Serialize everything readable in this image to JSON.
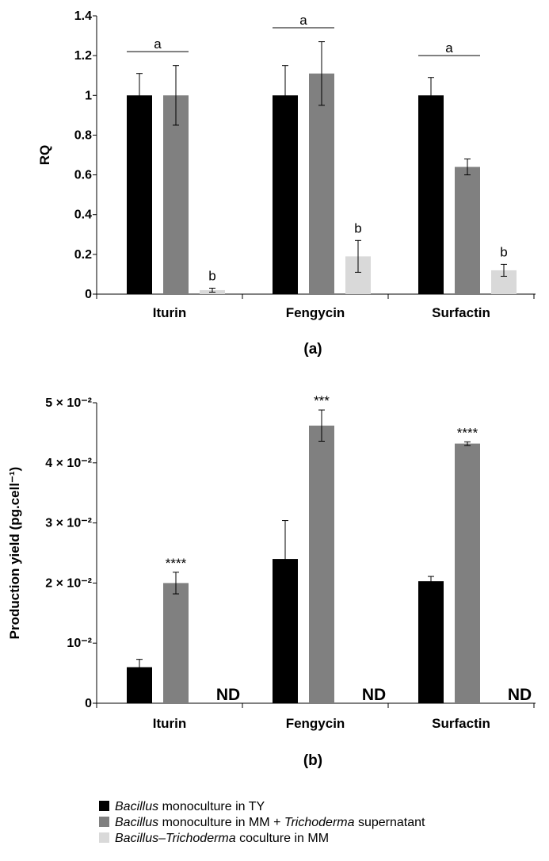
{
  "colors": {
    "series1": "#000000",
    "series2": "#808080",
    "series3": "#d9d9d9"
  },
  "legend": [
    {
      "italic": "Bacillus",
      "rest": " monoculture  in TY",
      "italic2": "",
      "rest2": ""
    },
    {
      "italic": "Bacillus",
      "rest": " monoculture  in MM + ",
      "italic2": "Trichoderma",
      "rest2": " supernatant"
    },
    {
      "italic": "Bacillus–Trichoderma",
      "rest": " coculture in MM",
      "italic2": "",
      "rest2": ""
    }
  ],
  "chart_data": [
    {
      "type": "bar",
      "panel_label": "(a)",
      "ylabel": "RQ",
      "ylim": [
        0,
        1.4
      ],
      "yticks": [
        0,
        0.2,
        0.4,
        0.6,
        0.8,
        1,
        1.2,
        1.4
      ],
      "ytick_labels": [
        "0",
        "0.2",
        "0.4",
        "0.6",
        "0.8",
        "1",
        "1.2",
        "1.4"
      ],
      "categories": [
        "Iturin",
        "Fengycin",
        "Surfactin"
      ],
      "series": [
        {
          "values": [
            1.0,
            1.0,
            1.0
          ],
          "errors": [
            0.11,
            0.15,
            0.09
          ]
        },
        {
          "values": [
            1.0,
            1.11,
            0.64
          ],
          "errors": [
            0.15,
            0.16,
            0.04
          ]
        },
        {
          "values": [
            0.02,
            0.19,
            0.12
          ],
          "errors": [
            0.01,
            0.08,
            0.03
          ]
        }
      ],
      "annotations": [
        {
          "category": 0,
          "group_label": "a",
          "third_label": "b",
          "line_y": 1.22
        },
        {
          "category": 1,
          "group_label": "a",
          "third_label": "b",
          "line_y": 1.34
        },
        {
          "category": 2,
          "group_label": "a",
          "third_label": "b",
          "line_y": 1.2
        }
      ]
    },
    {
      "type": "bar",
      "panel_label": "(b)",
      "ylabel": "Production yield (pg.cell⁻¹)",
      "ylim": [
        0,
        0.05
      ],
      "yticks": [
        0,
        0.01,
        0.02,
        0.03,
        0.04,
        0.05
      ],
      "ytick_labels": [
        "0",
        "10⁻²",
        "2 × 10⁻²",
        "3 × 10⁻²",
        "4 × 10⁻²",
        "5 × 10⁻²"
      ],
      "categories": [
        "Iturin",
        "Fengycin",
        "Surfactin"
      ],
      "series": [
        {
          "values": [
            0.006,
            0.024,
            0.0203
          ],
          "errors": [
            0.0013,
            0.0064,
            0.0008
          ]
        },
        {
          "values": [
            0.02,
            0.0462,
            0.0432
          ],
          "errors": [
            0.0018,
            0.0026,
            0.0003
          ]
        }
      ],
      "significance": [
        "****",
        "***",
        "****"
      ],
      "nd_label": "ND"
    }
  ]
}
